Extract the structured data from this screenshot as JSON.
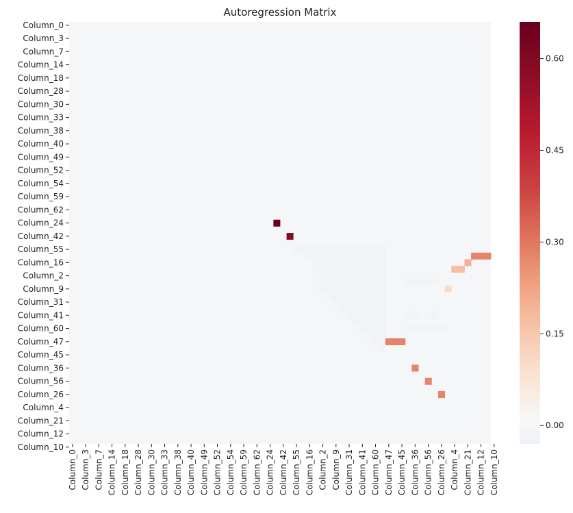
{
  "chart_data": {
    "type": "heatmap",
    "title": "Autoregression Matrix",
    "xlabel": "",
    "ylabel": "",
    "row_labels": [
      "Column_0",
      "Column_3",
      "Column_7",
      "Column_14",
      "Column_18",
      "Column_28",
      "Column_30",
      "Column_33",
      "Column_38",
      "Column_40",
      "Column_49",
      "Column_52",
      "Column_54",
      "Column_59",
      "Column_62",
      "Column_24",
      "Column_42",
      "Column_55",
      "Column_16",
      "Column_2",
      "Column_9",
      "Column_31",
      "Column_41",
      "Column_60",
      "Column_47",
      "Column_45",
      "Column_36",
      "Column_56",
      "Column_26",
      "Column_4",
      "Column_21",
      "Column_12",
      "Column_10"
    ],
    "col_labels": [
      "Column_0",
      "Column_3",
      "Column_7",
      "Column_14",
      "Column_18",
      "Column_28",
      "Column_30",
      "Column_33",
      "Column_38",
      "Column_40",
      "Column_49",
      "Column_52",
      "Column_54",
      "Column_59",
      "Column_62",
      "Column_24",
      "Column_42",
      "Column_55",
      "Column_16",
      "Column_2",
      "Column_9",
      "Column_31",
      "Column_41",
      "Column_60",
      "Column_47",
      "Column_45",
      "Column_36",
      "Column_56",
      "Column_26",
      "Column_4",
      "Column_21",
      "Column_12",
      "Column_10"
    ],
    "grid_size": 64,
    "default_value": 0.0,
    "lower_triangle_value": -0.01,
    "lower_triangle": [
      {
        "row": 34,
        "col_start": 34,
        "col_end": 47
      },
      {
        "row": 35,
        "col_start": 36,
        "col_end": 47
      },
      {
        "row": 36,
        "col_start": 37,
        "col_end": 47
      },
      {
        "row": 37,
        "col_start": 37,
        "col_end": 47
      },
      {
        "row": 38,
        "col_start": 38,
        "col_end": 47
      },
      {
        "row": 39,
        "col_start": 38,
        "col_end": 47
      },
      {
        "row": 40,
        "col_start": 38,
        "col_end": 47
      },
      {
        "row": 41,
        "col_start": 39,
        "col_end": 47
      },
      {
        "row": 42,
        "col_start": 40,
        "col_end": 47
      },
      {
        "row": 43,
        "col_start": 41,
        "col_end": 47
      },
      {
        "row": 44,
        "col_start": 42,
        "col_end": 47
      },
      {
        "row": 45,
        "col_start": 43,
        "col_end": 47
      },
      {
        "row": 46,
        "col_start": 44,
        "col_end": 47
      },
      {
        "row": 47,
        "col_start": 45,
        "col_end": 47
      },
      {
        "row": 48,
        "col_start": 46,
        "col_end": 47
      },
      {
        "row": 49,
        "col_start": 47,
        "col_end": 47
      }
    ],
    "cells": [
      {
        "row": 30,
        "col": 31,
        "value": 0.66
      },
      {
        "row": 32,
        "col": 33,
        "value": 0.59
      },
      {
        "row": 35,
        "col": 61,
        "value": 0.28
      },
      {
        "row": 35,
        "col": 62,
        "value": 0.28
      },
      {
        "row": 35,
        "col": 63,
        "value": 0.28
      },
      {
        "row": 36,
        "col": 60,
        "value": 0.2
      },
      {
        "row": 37,
        "col": 58,
        "value": 0.17
      },
      {
        "row": 37,
        "col": 59,
        "value": 0.17
      },
      {
        "row": 39,
        "col": 51,
        "value": -0.01
      },
      {
        "row": 39,
        "col": 52,
        "value": -0.01
      },
      {
        "row": 39,
        "col": 53,
        "value": -0.01
      },
      {
        "row": 39,
        "col": 54,
        "value": -0.01
      },
      {
        "row": 39,
        "col": 55,
        "value": -0.01
      },
      {
        "row": 40,
        "col": 57,
        "value": 0.1
      },
      {
        "row": 44,
        "col": 51,
        "value": -0.01
      },
      {
        "row": 44,
        "col": 52,
        "value": -0.01
      },
      {
        "row": 44,
        "col": 55,
        "value": -0.01
      },
      {
        "row": 46,
        "col": 51,
        "value": -0.01
      },
      {
        "row": 46,
        "col": 52,
        "value": -0.01
      },
      {
        "row": 46,
        "col": 53,
        "value": -0.01
      },
      {
        "row": 46,
        "col": 54,
        "value": -0.01
      },
      {
        "row": 46,
        "col": 55,
        "value": -0.01
      },
      {
        "row": 46,
        "col": 56,
        "value": -0.01
      },
      {
        "row": 48,
        "col": 48,
        "value": 0.28
      },
      {
        "row": 48,
        "col": 49,
        "value": 0.28
      },
      {
        "row": 48,
        "col": 50,
        "value": 0.28
      },
      {
        "row": 52,
        "col": 52,
        "value": 0.28
      },
      {
        "row": 54,
        "col": 54,
        "value": 0.28
      },
      {
        "row": 56,
        "col": 56,
        "value": 0.28
      }
    ],
    "colorbar": {
      "vmin": -0.03,
      "vmax": 0.66,
      "ticks": [
        0.0,
        0.15,
        0.3,
        0.45,
        0.6
      ],
      "tick_labels": [
        "0.00",
        "0.15",
        "0.30",
        "0.45",
        "0.60"
      ],
      "colormap": "RdBu_r",
      "colormap_stops": [
        {
          "v": 0.0,
          "color": "#edf2f7"
        },
        {
          "v": 0.06,
          "color": "#f6f7f7"
        },
        {
          "v": 0.16,
          "color": "#fbe3d4"
        },
        {
          "v": 0.27,
          "color": "#f7c5ab"
        },
        {
          "v": 0.38,
          "color": "#f0a07f"
        },
        {
          "v": 0.48,
          "color": "#e0775e"
        },
        {
          "v": 0.6,
          "color": "#cc4443"
        },
        {
          "v": 0.74,
          "color": "#b81a2f"
        },
        {
          "v": 0.88,
          "color": "#8c0c25"
        },
        {
          "v": 1.0,
          "color": "#67001f"
        }
      ]
    },
    "grid": false,
    "legend": "colorbar-right"
  }
}
